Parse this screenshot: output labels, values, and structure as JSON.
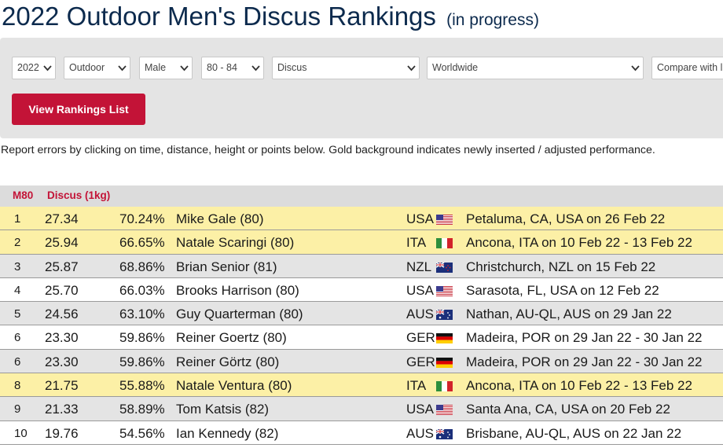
{
  "page": {
    "title": "2022 Outdoor Men's Discus Rankings",
    "subtitle": "(in progress)"
  },
  "filters": [
    {
      "name": "year-select",
      "value": "2022"
    },
    {
      "name": "venue-type-select",
      "value": "Outdoor"
    },
    {
      "name": "gender-select",
      "value": "Male"
    },
    {
      "name": "age-group-select",
      "value": "80 - 84"
    },
    {
      "name": "event-select",
      "value": "Discus"
    },
    {
      "name": "region-select",
      "value": "Worldwide"
    },
    {
      "name": "compare-select",
      "value": "Compare with l"
    }
  ],
  "view_button": "View Rankings List",
  "report_note": "Report errors by clicking on time, distance, height or points below. Gold background indicates newly inserted / adjusted performance.",
  "table": {
    "category": "M80",
    "event": "Discus (1kg)",
    "rows": [
      {
        "rank": "1",
        "mark": "27.34",
        "pct": "70.24%",
        "name": "Mike Gale (80)",
        "nat": "USA",
        "flag": "usa-flag-icon",
        "venue": "Petaluma, CA, USA on 26 Feb 22",
        "highlight": "gold"
      },
      {
        "rank": "2",
        "mark": "25.94",
        "pct": "66.65%",
        "name": "Natale Scaringi (80)",
        "nat": "ITA",
        "flag": "ita-flag-icon",
        "venue": "Ancona, ITA on 10 Feb 22 - 13 Feb 22",
        "highlight": "gold"
      },
      {
        "rank": "3",
        "mark": "25.87",
        "pct": "68.86%",
        "name": "Brian Senior (81)",
        "nat": "NZL",
        "flag": "nzl-flag-icon",
        "venue": "Christchurch, NZL on 15 Feb 22",
        "highlight": "grey"
      },
      {
        "rank": "4",
        "mark": "25.70",
        "pct": "66.03%",
        "name": "Brooks Harrison (80)",
        "nat": "USA",
        "flag": "usa-flag-icon",
        "venue": "Sarasota, FL, USA on 12 Feb 22",
        "highlight": "white"
      },
      {
        "rank": "5",
        "mark": "24.56",
        "pct": "63.10%",
        "name": "Guy Quarterman (80)",
        "nat": "AUS",
        "flag": "aus-flag-icon",
        "venue": "Nathan, AU-QL, AUS on 29 Jan 22",
        "highlight": "grey"
      },
      {
        "rank": "6",
        "mark": "23.30",
        "pct": "59.86%",
        "name": "Reiner Goertz (80)",
        "nat": "GER",
        "flag": "ger-flag-icon",
        "venue": "Madeira, POR on 29 Jan 22 - 30 Jan 22",
        "highlight": "white"
      },
      {
        "rank": "6",
        "mark": "23.30",
        "pct": "59.86%",
        "name": "Reiner Görtz (80)",
        "nat": "GER",
        "flag": "ger-flag-icon",
        "venue": "Madeira, POR on 29 Jan 22 - 30 Jan 22",
        "highlight": "grey"
      },
      {
        "rank": "8",
        "mark": "21.75",
        "pct": "55.88%",
        "name": "Natale Ventura (80)",
        "nat": "ITA",
        "flag": "ita-flag-icon",
        "venue": "Ancona, ITA on 10 Feb 22 - 13 Feb 22",
        "highlight": "gold"
      },
      {
        "rank": "9",
        "mark": "21.33",
        "pct": "58.89%",
        "name": "Tom Katsis (82)",
        "nat": "USA",
        "flag": "usa-flag-icon",
        "venue": "Santa Ana, CA, USA on 20 Feb 22",
        "highlight": "grey"
      },
      {
        "rank": "10",
        "mark": "19.76",
        "pct": "54.56%",
        "name": "Ian Kennedy (82)",
        "nat": "AUS",
        "flag": "aus-flag-icon",
        "venue": "Brisbane, AU-QL, AUS on 22 Jan 22",
        "highlight": "white"
      }
    ]
  },
  "colors": {
    "title": "#0c2a4d",
    "accent": "#c31337",
    "gold_row": "#fcf0a6",
    "grey_row": "#e4e4e4"
  }
}
